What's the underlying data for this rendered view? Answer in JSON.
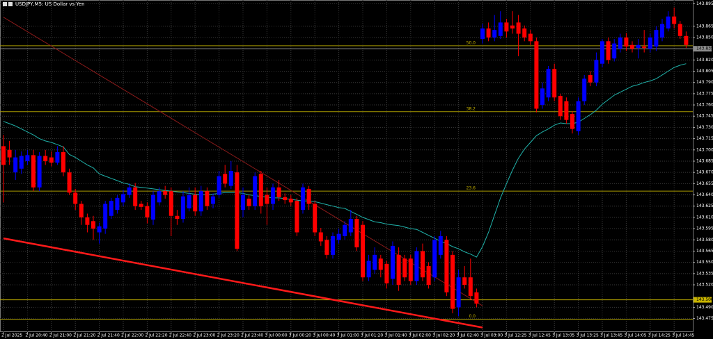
{
  "chart_data": {
    "type": "candlestick",
    "title": "USDJPY,M5: US Dollar vs Yen",
    "bull_color": "#0000ff",
    "bear_color": "#ff0000",
    "grid": true,
    "ylim": [
      143.457,
      143.9
    ],
    "yticks": [
      {
        "value": 143.895,
        "label": "143.895"
      },
      {
        "value": 143.865,
        "label": "143.865"
      },
      {
        "value": 143.85,
        "label": "143.850"
      },
      {
        "value": 143.82,
        "label": "143.820"
      },
      {
        "value": 143.805,
        "label": "143.805"
      },
      {
        "value": 143.79,
        "label": "143.790"
      },
      {
        "value": 143.775,
        "label": "143.775"
      },
      {
        "value": 143.76,
        "label": "143.760"
      },
      {
        "value": 143.745,
        "label": "143.745"
      },
      {
        "value": 143.73,
        "label": "143.730"
      },
      {
        "value": 143.715,
        "label": "143.715"
      },
      {
        "value": 143.7,
        "label": "143.700"
      },
      {
        "value": 143.685,
        "label": "143.685"
      },
      {
        "value": 143.67,
        "label": "143.670"
      },
      {
        "value": 143.655,
        "label": "143.655"
      },
      {
        "value": 143.64,
        "label": "143.640"
      },
      {
        "value": 143.625,
        "label": "143.625"
      },
      {
        "value": 143.61,
        "label": "143.610"
      },
      {
        "value": 143.595,
        "label": "143.595"
      },
      {
        "value": 143.58,
        "label": "143.580"
      },
      {
        "value": 143.565,
        "label": "143.565"
      },
      {
        "value": 143.55,
        "label": "143.550"
      },
      {
        "value": 143.535,
        "label": "143.535"
      },
      {
        "value": 143.52,
        "label": "143.520"
      },
      {
        "value": 143.49,
        "label": "143.490"
      },
      {
        "value": 143.475,
        "label": "143.475"
      }
    ],
    "categories": [
      "2 Jul 2025",
      null,
      null,
      null,
      "2 Jul 20:40",
      null,
      null,
      null,
      "2 Jul 21:00",
      null,
      null,
      null,
      "2 Jul 21:20",
      null,
      null,
      null,
      "2 Jul 21:40",
      null,
      null,
      null,
      "2 Jul 22:00",
      null,
      null,
      null,
      "2 Jul 22:20",
      null,
      null,
      null,
      "2 Jul 22:40",
      null,
      null,
      null,
      "2 Jul 23:00",
      null,
      null,
      null,
      "2 Jul 23:20",
      null,
      null,
      null,
      "2 Jul 23:40",
      null,
      null,
      null,
      "3 Jul 00:00",
      null,
      null,
      null,
      "3 Jul 00:20",
      null,
      null,
      null,
      "3 Jul 00:40",
      null,
      null,
      null,
      "3 Jul 01:00",
      null,
      null,
      null,
      "3 Jul 01:20",
      null,
      null,
      null,
      "3 Jul 01:40",
      null,
      null,
      null,
      "3 Jul 02:00",
      null,
      null,
      null,
      "3 Jul 02:20",
      null,
      null,
      null,
      "3 Jul 02:40",
      null,
      null,
      null,
      "3 Jul 03:00",
      null,
      null,
      null,
      "3 Jul 12:25",
      null,
      null,
      null,
      "3 Jul 12:45",
      null,
      null,
      null,
      "3 Jul 13:05",
      null,
      null,
      null,
      "3 Jul 13:25",
      null,
      null,
      null,
      "3 Jul 13:45",
      null,
      null,
      null,
      "3 Jul 14:05",
      null,
      null,
      null,
      "3 Jul 14:25",
      null,
      null,
      null,
      "3 Jul 14:45",
      null,
      null
    ],
    "candles": [
      [
        143.705,
        143.72,
        143.63,
        143.68
      ],
      [
        143.7,
        143.712,
        143.68,
        143.69
      ],
      [
        143.67,
        143.7,
        143.66,
        143.69
      ],
      [
        143.675,
        143.698,
        143.668,
        143.692
      ],
      [
        143.685,
        143.7,
        143.68,
        143.693
      ],
      [
        143.693,
        143.7,
        143.645,
        143.65
      ],
      [
        143.65,
        143.697,
        143.645,
        143.692
      ],
      [
        143.692,
        143.7,
        143.68,
        143.685
      ],
      [
        143.69,
        143.698,
        143.678,
        143.683
      ],
      [
        143.683,
        143.705,
        143.68,
        143.697
      ],
      [
        143.697,
        143.705,
        143.665,
        143.67
      ],
      [
        143.67,
        143.675,
        143.64,
        143.643
      ],
      [
        143.643,
        143.648,
        143.62,
        143.628
      ],
      [
        143.628,
        143.632,
        143.6,
        143.61
      ],
      [
        143.61,
        143.615,
        143.59,
        143.6
      ],
      [
        143.605,
        143.612,
        143.58,
        143.595
      ],
      [
        143.59,
        143.603,
        143.575,
        143.598
      ],
      [
        143.595,
        143.632,
        143.588,
        143.628
      ],
      [
        143.612,
        143.636,
        143.608,
        143.632
      ],
      [
        143.62,
        143.64,
        143.615,
        143.636
      ],
      [
        143.63,
        143.647,
        143.625,
        143.641
      ],
      [
        143.64,
        143.655,
        143.636,
        143.65
      ],
      [
        143.65,
        143.656,
        143.62,
        143.625
      ],
      [
        143.628,
        143.632,
        143.62,
        143.624
      ],
      [
        143.625,
        143.63,
        143.602,
        143.61
      ],
      [
        143.607,
        143.645,
        143.6,
        143.64
      ],
      [
        143.63,
        143.65,
        143.626,
        143.645
      ],
      [
        143.645,
        143.652,
        143.635,
        143.64
      ],
      [
        143.645,
        143.65,
        143.585,
        143.612
      ],
      [
        143.612,
        143.62,
        143.6,
        143.608
      ],
      [
        143.608,
        143.645,
        143.603,
        143.638
      ],
      [
        143.622,
        143.65,
        143.618,
        143.64
      ],
      [
        143.64,
        143.65,
        143.612,
        143.618
      ],
      [
        143.618,
        143.652,
        143.612,
        143.645
      ],
      [
        143.645,
        143.65,
        143.62,
        143.625
      ],
      [
        143.628,
        143.642,
        143.622,
        143.638
      ],
      [
        143.64,
        143.672,
        143.636,
        143.665
      ],
      [
        143.668,
        143.68,
        143.65,
        143.655
      ],
      [
        143.652,
        143.685,
        143.648,
        143.672
      ],
      [
        143.67,
        143.68,
        143.565,
        143.568
      ],
      [
        143.62,
        143.65,
        143.61,
        143.64
      ],
      [
        143.635,
        143.64,
        143.62,
        143.625
      ],
      [
        143.625,
        143.67,
        143.62,
        143.665
      ],
      [
        143.668,
        143.672,
        143.615,
        143.625
      ],
      [
        143.64,
        143.65,
        143.6,
        143.628
      ],
      [
        143.628,
        143.655,
        143.62,
        143.65
      ],
      [
        143.65,
        143.66,
        143.632,
        143.637
      ],
      [
        143.637,
        143.642,
        143.628,
        143.633
      ],
      [
        143.635,
        143.64,
        143.625,
        143.63
      ],
      [
        143.632,
        143.636,
        143.585,
        143.59
      ],
      [
        143.62,
        143.655,
        143.615,
        143.65
      ],
      [
        143.648,
        143.652,
        143.62,
        143.628
      ],
      [
        143.628,
        143.632,
        143.585,
        143.59
      ],
      [
        143.59,
        143.596,
        143.572,
        143.578
      ],
      [
        143.58,
        143.585,
        143.555,
        143.56
      ],
      [
        143.56,
        143.59,
        143.555,
        143.585
      ],
      [
        143.58,
        143.595,
        143.575,
        143.588
      ],
      [
        143.585,
        143.605,
        143.58,
        143.6
      ],
      [
        143.59,
        143.62,
        143.585,
        143.608
      ],
      [
        143.608,
        143.612,
        143.565,
        143.57
      ],
      [
        143.6,
        143.605,
        143.525,
        143.53
      ],
      [
        143.53,
        143.56,
        143.525,
        143.552
      ],
      [
        143.54,
        143.57,
        143.535,
        143.56
      ],
      [
        143.555,
        143.56,
        143.53,
        143.54
      ],
      [
        143.548,
        143.552,
        143.515,
        143.522
      ],
      [
        143.528,
        143.578,
        143.52,
        143.572
      ],
      [
        143.56,
        143.57,
        143.512,
        143.52
      ],
      [
        143.555,
        143.56,
        143.525,
        143.53
      ],
      [
        143.555,
        143.56,
        143.52,
        143.525
      ],
      [
        143.525,
        143.57,
        143.52,
        143.565
      ],
      [
        143.565,
        143.575,
        143.525,
        143.53
      ],
      [
        143.545,
        143.55,
        143.515,
        143.52
      ],
      [
        143.53,
        143.585,
        143.525,
        143.58
      ],
      [
        143.56,
        143.592,
        143.555,
        143.585
      ],
      [
        143.58,
        143.585,
        143.505,
        143.51
      ],
      [
        143.56,
        143.565,
        143.482,
        143.488
      ],
      [
        143.49,
        143.54,
        143.478,
        143.53
      ],
      [
        143.53,
        143.545,
        143.515,
        143.52
      ],
      [
        143.53,
        143.555,
        143.5,
        143.505
      ],
      [
        143.51,
        143.515,
        143.49,
        143.495
      ],
      [
        143.848,
        143.868,
        143.842,
        143.862
      ],
      [
        143.862,
        143.87,
        143.845,
        143.85
      ],
      [
        143.85,
        143.88,
        143.845,
        143.86
      ],
      [
        143.852,
        143.885,
        143.848,
        143.87
      ],
      [
        143.87,
        143.875,
        143.85,
        143.858
      ],
      [
        143.866,
        143.885,
        143.855,
        143.862
      ],
      [
        143.87,
        143.88,
        143.825,
        143.855
      ],
      [
        143.862,
        143.866,
        143.845,
        143.85
      ],
      [
        143.855,
        143.86,
        143.84,
        143.845
      ],
      [
        143.845,
        143.85,
        143.75,
        143.755
      ],
      [
        143.76,
        143.79,
        143.755,
        143.782
      ],
      [
        143.77,
        143.812,
        143.765,
        143.808
      ],
      [
        143.808,
        143.815,
        143.765,
        143.77
      ],
      [
        143.772,
        143.775,
        143.74,
        143.745
      ],
      [
        143.765,
        143.77,
        143.735,
        143.74
      ],
      [
        143.748,
        143.752,
        143.722,
        143.728
      ],
      [
        143.725,
        143.77,
        143.72,
        143.765
      ],
      [
        143.765,
        143.8,
        143.76,
        143.795
      ],
      [
        143.8,
        143.805,
        143.785,
        143.79
      ],
      [
        143.79,
        143.83,
        143.785,
        143.82
      ],
      [
        143.815,
        143.848,
        143.81,
        143.845
      ],
      [
        143.845,
        143.85,
        143.815,
        143.82
      ],
      [
        143.822,
        143.848,
        143.818,
        143.842
      ],
      [
        143.835,
        143.855,
        143.83,
        143.85
      ],
      [
        143.85,
        143.856,
        143.832,
        143.838
      ],
      [
        143.84,
        143.845,
        143.83,
        143.835
      ],
      [
        143.836,
        143.848,
        143.822,
        143.84
      ],
      [
        143.838,
        143.86,
        143.83,
        143.836
      ],
      [
        143.835,
        143.855,
        143.83,
        143.85
      ],
      [
        143.838,
        143.865,
        143.832,
        143.86
      ],
      [
        143.85,
        143.875,
        143.845,
        143.868
      ],
      [
        143.862,
        143.885,
        143.858,
        143.878
      ],
      [
        143.878,
        143.89,
        143.862,
        143.868
      ],
      [
        143.868,
        143.872,
        143.848,
        143.852
      ],
      [
        143.852,
        143.858,
        143.836,
        143.84
      ]
    ],
    "moving_average": {
      "color": "#20b2aa",
      "values": [
        143.738,
        143.735,
        143.732,
        143.728,
        143.724,
        143.72,
        143.715,
        143.712,
        143.71,
        143.707,
        143.704,
        143.694,
        143.69,
        143.685,
        143.68,
        143.676,
        143.668,
        143.665,
        143.662,
        143.659,
        143.656,
        143.654,
        143.651,
        143.65,
        143.649,
        143.648,
        143.647,
        143.646,
        143.645,
        143.644,
        143.643,
        143.642,
        143.641,
        143.64,
        143.64,
        143.641,
        143.642,
        143.643,
        143.643,
        143.643,
        143.642,
        143.64,
        143.639,
        143.638,
        143.637,
        143.636,
        143.636,
        143.635,
        143.634,
        143.633,
        143.632,
        143.632,
        143.631,
        143.629,
        143.627,
        143.625,
        143.623,
        143.622,
        143.618,
        143.614,
        143.61,
        143.607,
        143.604,
        143.603,
        143.601,
        143.6,
        143.599,
        143.597,
        143.595,
        143.594,
        143.59,
        143.586,
        143.582,
        143.578,
        143.575,
        143.571,
        143.568,
        143.564,
        143.561,
        143.557,
        143.571,
        143.59,
        143.613,
        143.636,
        143.655,
        143.673,
        143.689,
        143.701,
        143.71,
        143.719,
        143.724,
        143.728,
        143.733,
        143.736,
        143.735,
        143.735,
        143.737,
        143.742,
        143.747,
        143.753,
        143.761,
        143.767,
        143.773,
        143.777,
        143.781,
        143.785,
        143.787,
        143.79,
        143.792,
        143.795,
        143.8,
        143.805,
        143.81,
        143.813,
        143.815
      ]
    },
    "fib_levels": [
      {
        "label": "50.0",
        "value": 143.839
      },
      {
        "label": "38.2",
        "value": 143.751
      },
      {
        "label": "23.6",
        "value": 143.645
      },
      {
        "label": "0.0",
        "value": 143.474
      }
    ],
    "fib_color": "#a89a00",
    "price_lines": [
      {
        "value": 143.835,
        "label": "143.835",
        "color": "#8c8c8c"
      },
      {
        "value": 143.5,
        "label": "143.500",
        "color": "#c8b400"
      }
    ],
    "trendlines": [
      {
        "color": "#ff1a1a",
        "width": 2.5,
        "from": [
          0,
          143.582
        ],
        "to": [
          80,
          143.463
        ]
      },
      {
        "color": "#8b1a1a",
        "width": 1,
        "from": [
          0,
          143.877
        ],
        "to": [
          80,
          143.492
        ]
      }
    ]
  }
}
